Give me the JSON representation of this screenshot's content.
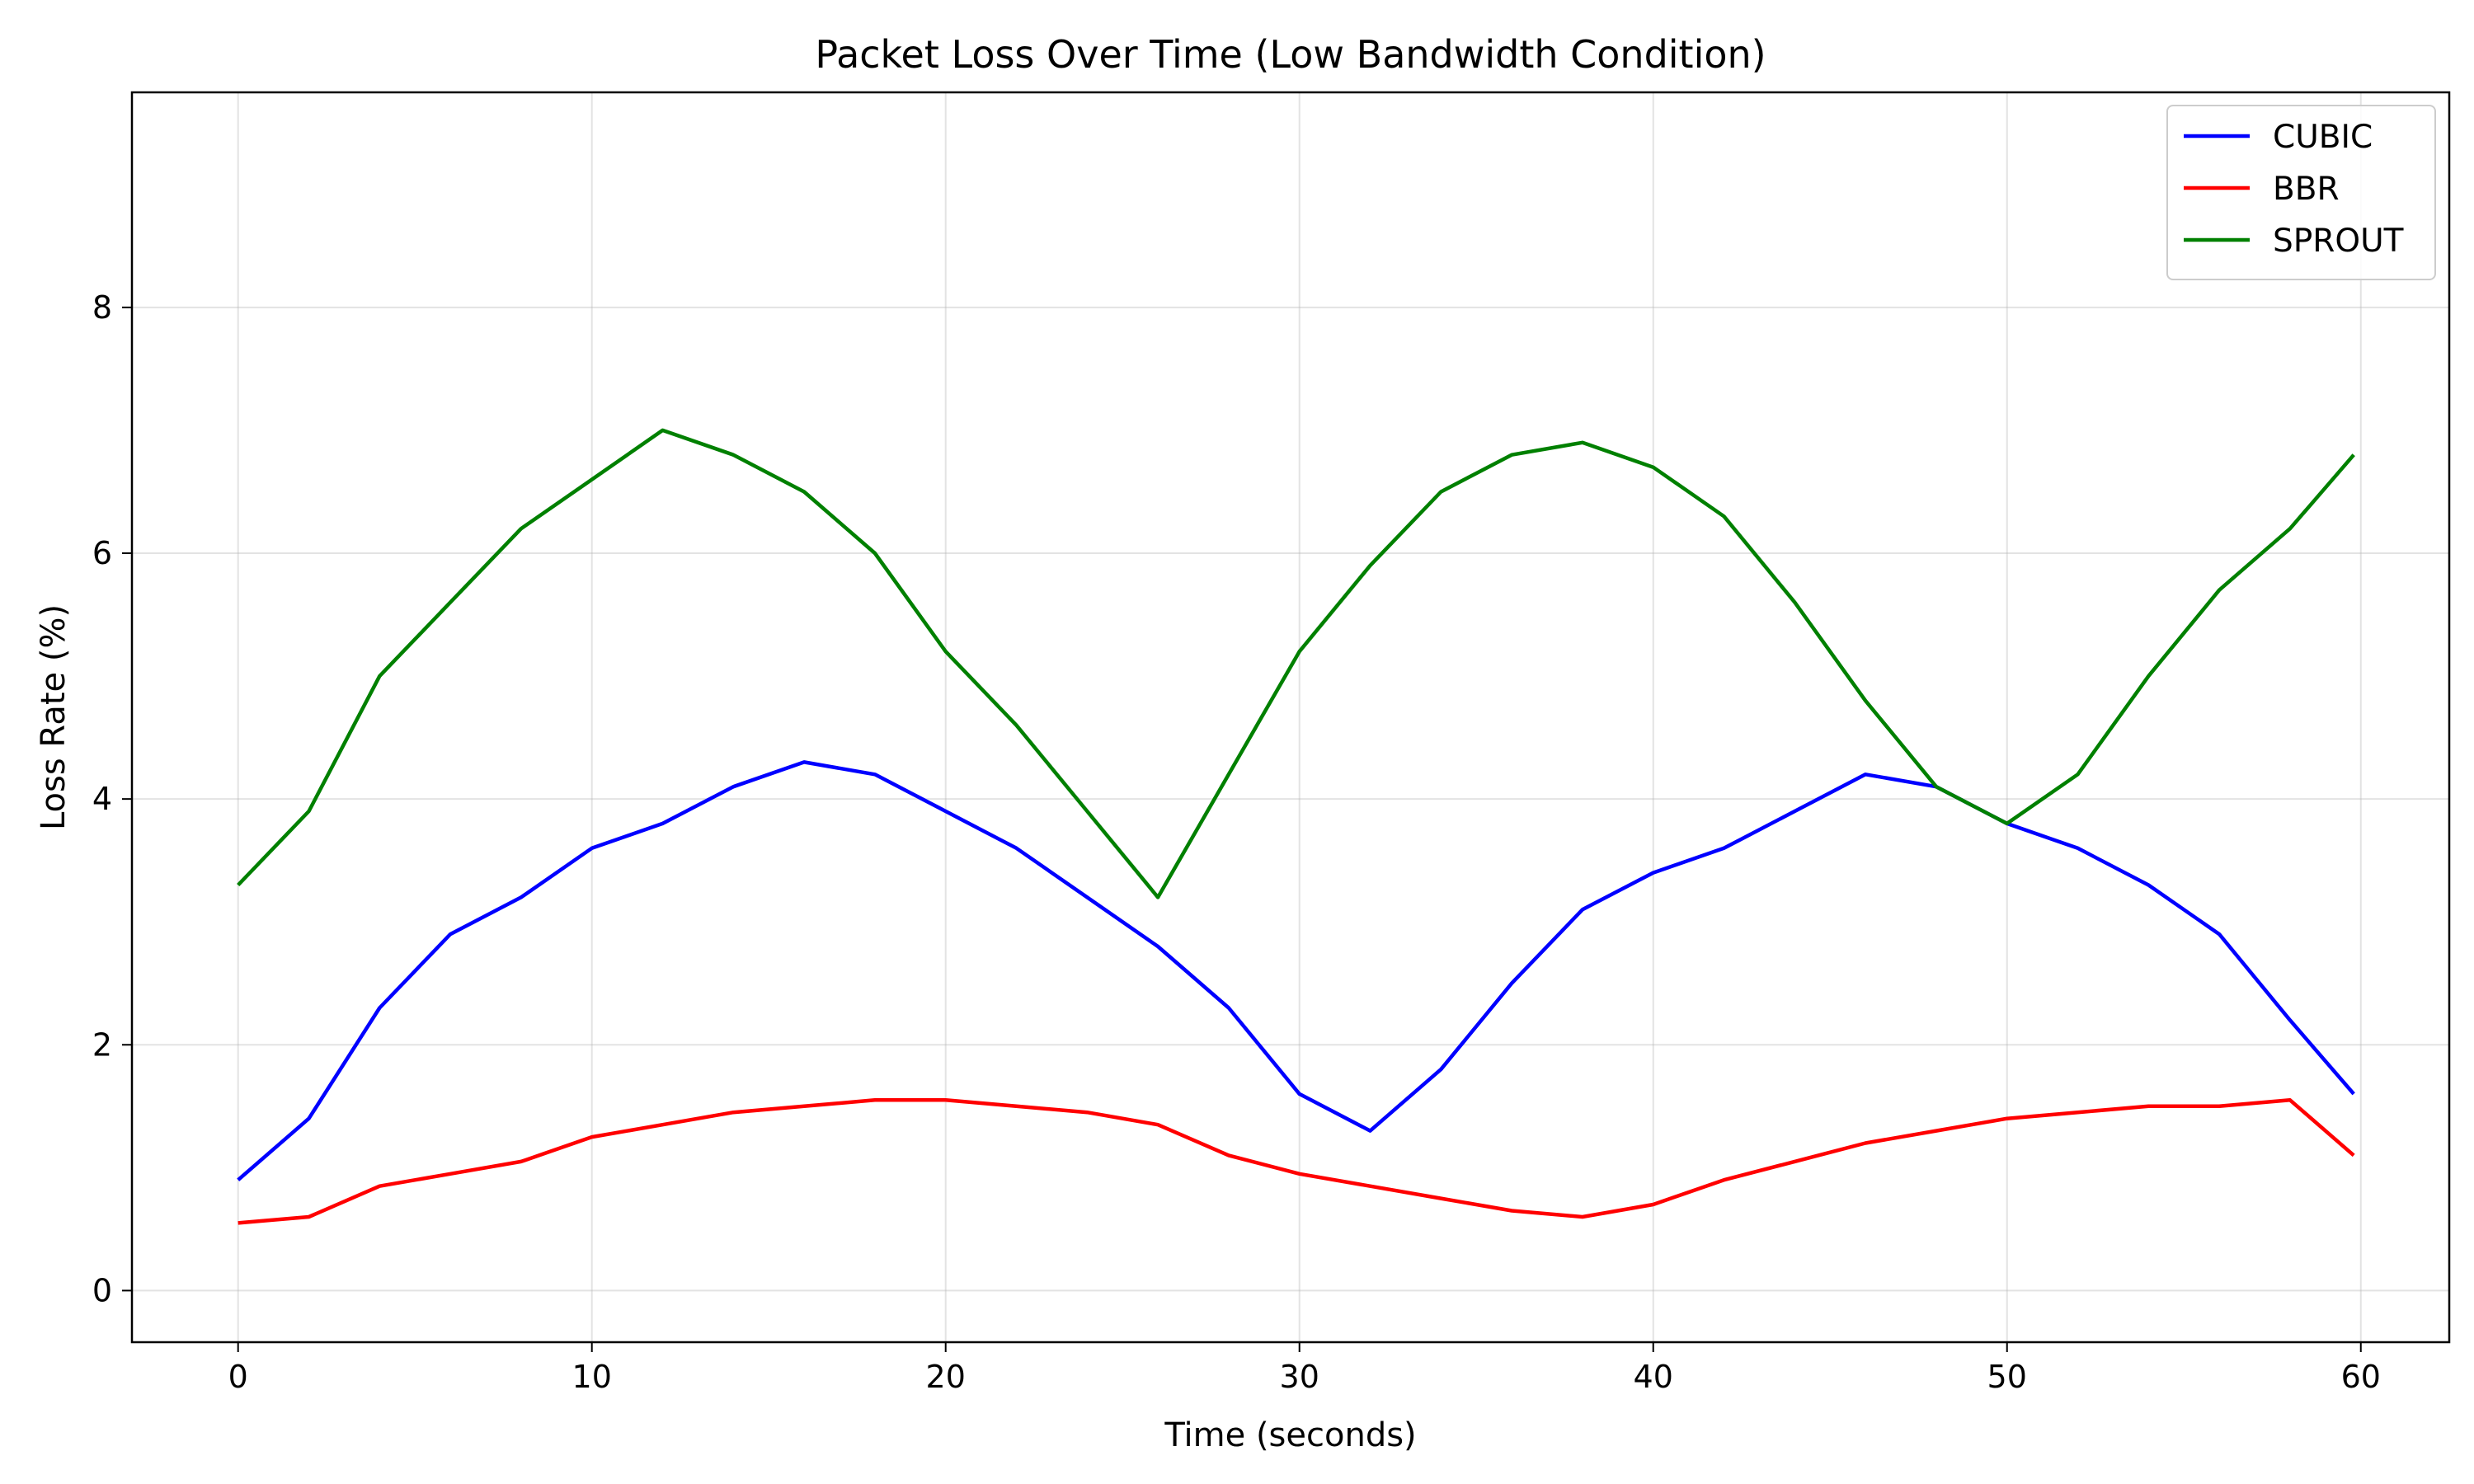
{
  "chart_data": {
    "type": "line",
    "title": "Packet Loss Over Time (Low Bandwidth Condition)",
    "xlabel": "Time (seconds)",
    "ylabel": "Loss Rate (%)",
    "xlim": [
      -3,
      62.5
    ],
    "ylim": [
      -0.42,
      9.75
    ],
    "xticks": [
      0,
      10,
      20,
      30,
      40,
      50,
      60
    ],
    "yticks": [
      0,
      2,
      4,
      6,
      8
    ],
    "grid": true,
    "legend_position": "top-right",
    "x": [
      0,
      2,
      4,
      6,
      8,
      10,
      12,
      14,
      16,
      18,
      20,
      22,
      24,
      26,
      28,
      30,
      32,
      34,
      36,
      38,
      40,
      42,
      44,
      46,
      48,
      50,
      52,
      54,
      56,
      58,
      59.8
    ],
    "series": [
      {
        "name": "CUBIC",
        "color": "#0000ff",
        "values": [
          0.9,
          1.4,
          2.3,
          2.9,
          3.2,
          3.6,
          3.8,
          4.1,
          4.3,
          4.2,
          3.9,
          3.6,
          3.2,
          2.8,
          2.3,
          1.6,
          1.3,
          1.8,
          2.5,
          3.1,
          3.4,
          3.6,
          3.9,
          4.2,
          4.1,
          3.8,
          3.6,
          3.3,
          2.9,
          2.2,
          1.6
        ]
      },
      {
        "name": "BBR",
        "color": "#ff0000",
        "values": [
          0.55,
          0.6,
          0.85,
          0.95,
          1.05,
          1.25,
          1.35,
          1.45,
          1.5,
          1.55,
          1.55,
          1.5,
          1.45,
          1.35,
          1.1,
          0.95,
          0.85,
          0.75,
          0.65,
          0.6,
          0.7,
          0.9,
          1.05,
          1.2,
          1.3,
          1.4,
          1.45,
          1.5,
          1.5,
          1.55,
          1.1
        ]
      },
      {
        "name": "SPROUT",
        "color": "#008000",
        "values": [
          3.3,
          3.9,
          5.0,
          5.6,
          6.2,
          6.6,
          7.0,
          6.8,
          6.5,
          6.0,
          5.2,
          4.6,
          3.9,
          3.2,
          4.2,
          5.2,
          5.9,
          6.5,
          6.8,
          6.9,
          6.7,
          6.3,
          5.6,
          4.8,
          4.1,
          3.8,
          4.2,
          5.0,
          5.7,
          6.2,
          6.8
        ]
      }
    ]
  }
}
